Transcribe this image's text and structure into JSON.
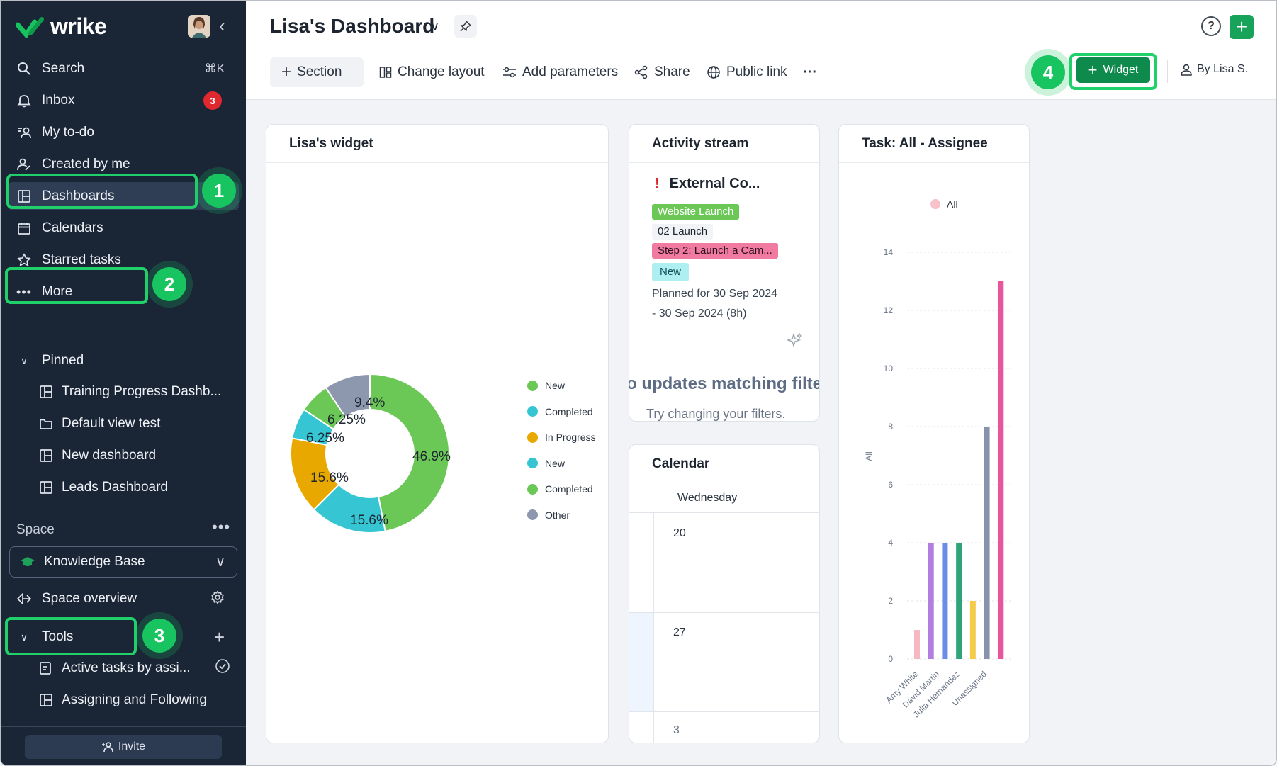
{
  "app": {
    "name": "wrike"
  },
  "sidebar": {
    "nav": [
      {
        "label": "Search",
        "shortcut": "⌘K"
      },
      {
        "label": "Inbox",
        "badge": "3"
      },
      {
        "label": "My to-do"
      },
      {
        "label": "Created by me"
      },
      {
        "label": "Dashboards"
      },
      {
        "label": "Calendars"
      },
      {
        "label": "Starred tasks"
      },
      {
        "label": "More"
      }
    ],
    "pinned": {
      "label": "Pinned",
      "items": [
        "Training Progress Dashb...",
        "Default view test",
        "New dashboard",
        "Leads Dashboard"
      ]
    },
    "space": {
      "label": "Space",
      "selected": "Knowledge Base",
      "overview": "Space overview",
      "tools": "Tools",
      "tool_items": [
        "Active tasks by assi...",
        "Assigning and Following"
      ]
    },
    "invite": "Invite"
  },
  "steps": [
    "1",
    "2",
    "3",
    "4"
  ],
  "header": {
    "title": "Lisa's Dashboard",
    "section": "Section",
    "change_layout": "Change layout",
    "add_parameters": "Add parameters",
    "share": "Share",
    "public_link": "Public link",
    "more": "···",
    "widget": "Widget",
    "by": "By Lisa S."
  },
  "widgets": {
    "lisa": {
      "title": "Lisa's widget"
    },
    "activity": {
      "title": "Activity stream",
      "task": "External Co...",
      "tags": [
        "Website Launch",
        "02 Launch",
        "Step 2: Launch a Cam...",
        "New"
      ],
      "planned_line1": "Planned for 30 Sep 2024",
      "planned_line2": "- 30 Sep 2024 (8h)",
      "empty_title": "o updates matching filte",
      "empty_sub": "Try changing your filters."
    },
    "calendar": {
      "title": "Calendar",
      "day": "Wednesday",
      "dates": [
        "20",
        "27",
        "3"
      ]
    },
    "assignee": {
      "title": "Task: All - Assignee"
    }
  },
  "chart_data": [
    {
      "type": "pie",
      "title": "Lisa's widget",
      "labels": [
        "New",
        "Completed",
        "In Progress",
        "New",
        "Completed",
        "Other"
      ],
      "values": [
        46.9,
        15.6,
        15.6,
        6.25,
        6.25,
        9.4
      ],
      "value_labels": [
        "46.9%",
        "15.6%",
        "15.6%",
        "6.25%",
        "6.25%",
        "9.4%"
      ],
      "colors": [
        "#6cc856",
        "#36c6d3",
        "#e8a800",
        "#36c6d3",
        "#6cc856",
        "#8d97ae"
      ],
      "donut": true
    },
    {
      "type": "bar",
      "title": "Task: All - Assignee",
      "legend": [
        "All"
      ],
      "ylabel": "All",
      "ylim": [
        0,
        14
      ],
      "yticks": [
        0,
        2,
        4,
        6,
        8,
        10,
        12,
        14
      ],
      "xtick_labels": [
        "Amy White",
        "David Martin",
        "Julia Hernandez",
        "Unassigned"
      ],
      "values": [
        1,
        4,
        4,
        4,
        2,
        8,
        13
      ],
      "colors": [
        "#f6b8c2",
        "#b27ee0",
        "#6a8ee8",
        "#2fa37a",
        "#f5cc4a",
        "#8892aa",
        "#e8559a"
      ]
    }
  ]
}
